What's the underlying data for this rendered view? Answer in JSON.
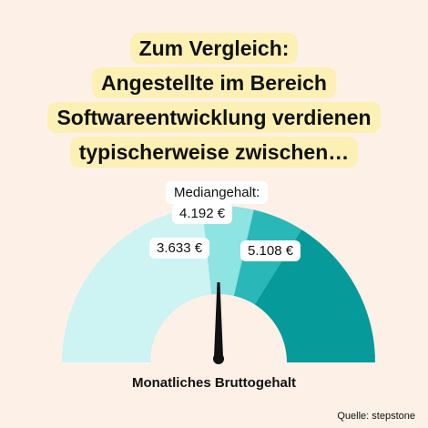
{
  "headline": {
    "lines": [
      "Zum Vergleich:",
      "Angestellte im Bereich",
      "Softwareentwicklung verdienen",
      "typischerweise zwischen…"
    ]
  },
  "chart_data": {
    "type": "gauge",
    "title": "Zum Vergleich: Angestellte im Bereich Softwareentwicklung verdienen typischerweise zwischen…",
    "axis_label": "Monatliches Bruttogehalt",
    "unit": "€",
    "segments": [
      {
        "label": "3.633 €",
        "value": 3633,
        "color": "#cdf3f3"
      },
      {
        "label": "4.192 €",
        "value": 4192,
        "color": "#8ee3e3"
      },
      {
        "label": "5.108 €",
        "value": 5108,
        "color": "#2ab7b8"
      },
      {
        "label": "",
        "value": null,
        "color": "#069a9a"
      }
    ],
    "median": {
      "title": "Mediangehalt:",
      "value": 4192,
      "label": "4.192 €"
    },
    "lower_quartile": {
      "value": 3633,
      "label": "3.633 €"
    },
    "upper_quartile": {
      "value": 5108,
      "label": "5.108 €"
    },
    "needle_value": 4192
  },
  "source": "Quelle: stepstone"
}
